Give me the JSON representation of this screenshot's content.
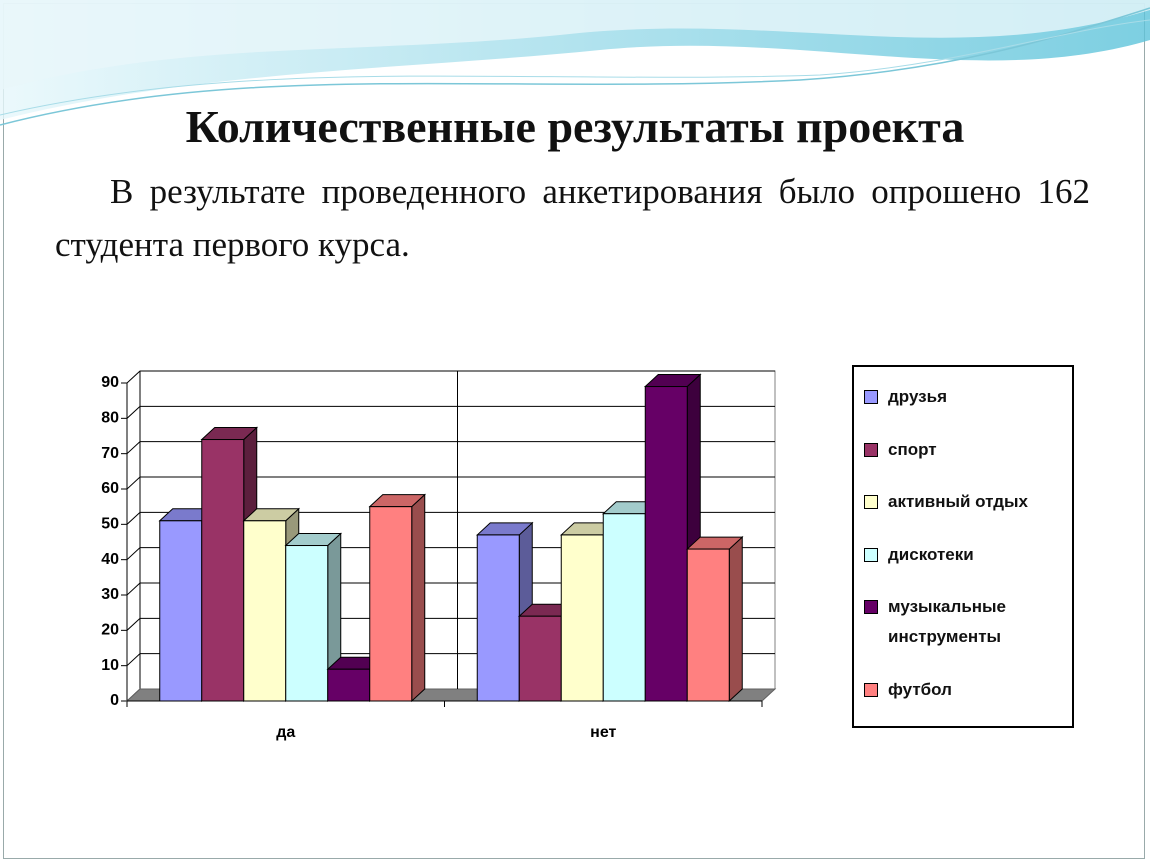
{
  "slide": {
    "title": "Количественные результаты проекта",
    "text": "В результате проведенного анкетирования было опрошено 162 студента первого курса."
  },
  "chart_data": {
    "type": "bar3d",
    "categories": [
      "да",
      "нет"
    ],
    "series": [
      {
        "name": "друзья",
        "color": "#9999ff",
        "values": [
          51,
          47
        ]
      },
      {
        "name": "спорт",
        "color": "#993366",
        "values": [
          74,
          24
        ]
      },
      {
        "name": "активный отдых",
        "color": "#ffffcc",
        "values": [
          51,
          47
        ]
      },
      {
        "name": "дискотеки",
        "color": "#ccffff",
        "values": [
          44,
          53
        ]
      },
      {
        "name": "музыкальные инструменты",
        "color": "#660066",
        "values": [
          9,
          89
        ]
      },
      {
        "name": "футбол",
        "color": "#ff8080",
        "values": [
          55,
          43
        ]
      }
    ],
    "ylim": [
      0,
      90
    ],
    "yticks": [
      0,
      10,
      20,
      30,
      40,
      50,
      60,
      70,
      80,
      90
    ],
    "grid": true,
    "legend": "right"
  }
}
